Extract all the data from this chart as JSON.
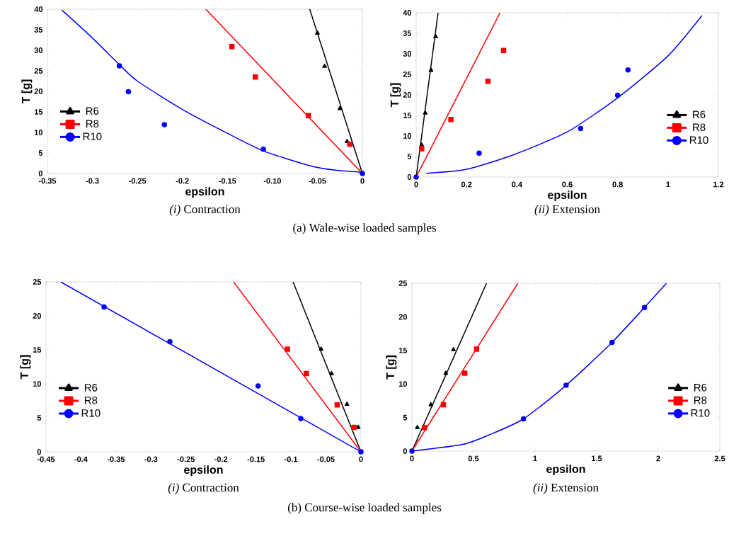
{
  "chart_data": [
    {
      "type": "scatter",
      "xlabel": "epsilon",
      "ylabel": "T [g]",
      "xlim": [
        -0.35,
        0
      ],
      "ylim": [
        0,
        40
      ],
      "xticks": [
        -0.35,
        -0.3,
        -0.25,
        -0.2,
        -0.15,
        {
          "value": -0.1,
          "label": "-0.10"
        },
        -0.05,
        0
      ],
      "yticks": [
        0,
        5,
        10,
        15,
        20,
        25,
        30,
        35,
        40
      ],
      "legend": "left",
      "annotations": [
        "*(i)* Contraction",
        "(a) Wale-wise loaded samples"
      ],
      "series": [
        {
          "name": "R6",
          "color": "#000000",
          "marker": "triangle",
          "x": [
            -0.05,
            -0.042,
            -0.025,
            -0.017
          ],
          "values": [
            34.2,
            26.1,
            15.8,
            7.8
          ]
        },
        {
          "name": "R8",
          "color": "#ff0000",
          "marker": "square",
          "x": [
            -0.145,
            -0.119,
            -0.06,
            -0.014
          ],
          "values": [
            30.9,
            23.5,
            14.1,
            7.1
          ]
        },
        {
          "name": "R10",
          "color": "#0000ff",
          "marker": "circle",
          "x": [
            -0.27,
            -0.26,
            -0.22,
            -0.11,
            0
          ],
          "values": [
            26.2,
            19.9,
            11.9,
            5.9,
            0
          ]
        },
        {
          "type": "line",
          "color": "#000000",
          "marker": "none",
          "x": [
            -0.0585,
            0
          ],
          "values": [
            40,
            0
          ]
        },
        {
          "type": "line",
          "color": "#ff0000",
          "marker": "none",
          "x": [
            -0.174,
            0
          ],
          "values": [
            40,
            0
          ]
        },
        {
          "type": "line",
          "color": "#0000ff",
          "marker": "none",
          "x": [
            -0.334,
            -0.3,
            -0.27,
            -0.25,
            -0.2,
            -0.15,
            -0.11,
            -0.06,
            -0.03,
            0
          ],
          "values": [
            39.8,
            33,
            26.5,
            22.5,
            15.6,
            9.8,
            5.5,
            2,
            0.8,
            0.3
          ]
        }
      ]
    },
    {
      "type": "scatter",
      "xlabel": "epsilon",
      "ylabel": "T [g]",
      "xlim": [
        0,
        1.2
      ],
      "ylim": [
        0,
        40
      ],
      "xticks": [
        0,
        0.2,
        0.4,
        0.6,
        0.8,
        1,
        1.2
      ],
      "yticks": [
        0,
        5,
        10,
        15,
        20,
        25,
        30,
        35,
        40
      ],
      "legend": "right",
      "annotations": [
        "*(ii)* Extension"
      ],
      "series": [
        {
          "name": "R6",
          "color": "#000000",
          "marker": "triangle",
          "x": [
            0.022,
            0.036,
            0.059,
            0.077
          ],
          "values": [
            7.8,
            15.6,
            26.0,
            34.2
          ]
        },
        {
          "name": "R8",
          "color": "#ff0000",
          "marker": "square",
          "x": [
            0.022,
            0.138,
            0.285,
            0.347
          ],
          "values": [
            6.9,
            14.0,
            23.3,
            30.8
          ]
        },
        {
          "name": "R10",
          "color": "#0000ff",
          "marker": "circle",
          "x": [
            0,
            0.25,
            0.653,
            0.8,
            0.841
          ],
          "values": [
            0,
            5.8,
            11.8,
            19.9,
            26.1
          ]
        },
        {
          "type": "line",
          "color": "#000000",
          "marker": "none",
          "x": [
            0,
            0.087
          ],
          "values": [
            0,
            40
          ]
        },
        {
          "type": "line",
          "color": "#ff0000",
          "marker": "none",
          "x": [
            0,
            0.333
          ],
          "values": [
            0,
            40
          ]
        },
        {
          "type": "line",
          "color": "#0000ff",
          "marker": "none",
          "x": [
            0.04,
            0.2,
            0.385,
            0.6,
            0.8,
            1.0,
            1.135
          ],
          "values": [
            0.9,
            1.9,
            5.4,
            11,
            19.3,
            29.5,
            39.3
          ]
        }
      ]
    },
    {
      "type": "scatter",
      "xlabel": "epsilon",
      "ylabel": "T [g]",
      "xlim": [
        -0.45,
        0
      ],
      "ylim": [
        0,
        25
      ],
      "xticks": [
        -0.45,
        -0.4,
        -0.35,
        -0.3,
        -0.25,
        -0.2,
        -0.15,
        -0.1,
        -0.05,
        0
      ],
      "yticks": [
        0,
        5,
        10,
        15,
        20,
        25
      ],
      "legend": "left",
      "annotations": [
        "*(i)* Contraction",
        "(b) Course-wise loaded samples"
      ],
      "series": [
        {
          "name": "R6",
          "color": "#000000",
          "marker": "triangle",
          "x": [
            -0.057,
            -0.042,
            -0.02,
            -0.004
          ],
          "values": [
            15.1,
            11.5,
            7.0,
            3.6
          ]
        },
        {
          "name": "R8",
          "color": "#ff0000",
          "marker": "square",
          "x": [
            -0.105,
            -0.078,
            -0.034,
            -0.01
          ],
          "values": [
            15.1,
            11.5,
            6.9,
            3.6
          ]
        },
        {
          "name": "R10",
          "color": "#0000ff",
          "marker": "circle",
          "x": [
            -0.367,
            -0.273,
            -0.147,
            -0.086,
            0
          ],
          "values": [
            21.3,
            16.2,
            9.7,
            4.9,
            0
          ]
        },
        {
          "type": "line",
          "color": "#000000",
          "marker": "none",
          "x": [
            -0.097,
            0
          ],
          "values": [
            25,
            0
          ]
        },
        {
          "type": "line",
          "color": "#ff0000",
          "marker": "none",
          "x": [
            -0.182,
            0
          ],
          "values": [
            25,
            0
          ]
        },
        {
          "type": "line",
          "color": "#0000ff",
          "marker": "none",
          "x": [
            -0.429,
            0
          ],
          "values": [
            25,
            0
          ]
        }
      ]
    },
    {
      "type": "scatter",
      "xlabel": "epsilon",
      "ylabel": "T [g]",
      "xlim": [
        0,
        2.5
      ],
      "ylim": [
        0,
        25
      ],
      "xticks": [
        0,
        0.5,
        1,
        1.5,
        2,
        2.5
      ],
      "yticks": [
        0,
        5,
        10,
        15,
        20,
        25
      ],
      "legend": "right",
      "annotations": [
        "*(ii)* Extension"
      ],
      "series": [
        {
          "name": "R6",
          "color": "#000000",
          "marker": "triangle",
          "x": [
            0.044,
            0.154,
            0.275,
            0.337
          ],
          "values": [
            3.5,
            6.9,
            11.6,
            15.1
          ]
        },
        {
          "name": "R8",
          "color": "#ff0000",
          "marker": "square",
          "x": [
            0.102,
            0.256,
            0.429,
            0.525
          ],
          "values": [
            3.5,
            6.9,
            11.6,
            15.2
          ]
        },
        {
          "name": "R10",
          "color": "#0000ff",
          "marker": "circle",
          "x": [
            0,
            0.906,
            1.252,
            1.625,
            1.888
          ],
          "values": [
            0,
            4.8,
            9.8,
            16.2,
            21.4
          ]
        },
        {
          "type": "line",
          "color": "#000000",
          "marker": "none",
          "x": [
            0,
            0.606
          ],
          "values": [
            0,
            25
          ]
        },
        {
          "type": "line",
          "color": "#ff0000",
          "marker": "none",
          "x": [
            0,
            0.86
          ],
          "values": [
            0,
            25
          ]
        },
        {
          "type": "line",
          "color": "#0000ff",
          "marker": "none",
          "x": [
            0,
            0.413,
            0.625,
            0.906,
            1.252,
            1.625,
            1.888,
            2.067
          ],
          "values": [
            0,
            1.0,
            2.4,
            4.8,
            9.8,
            16.2,
            21.4,
            25
          ]
        }
      ]
    }
  ]
}
